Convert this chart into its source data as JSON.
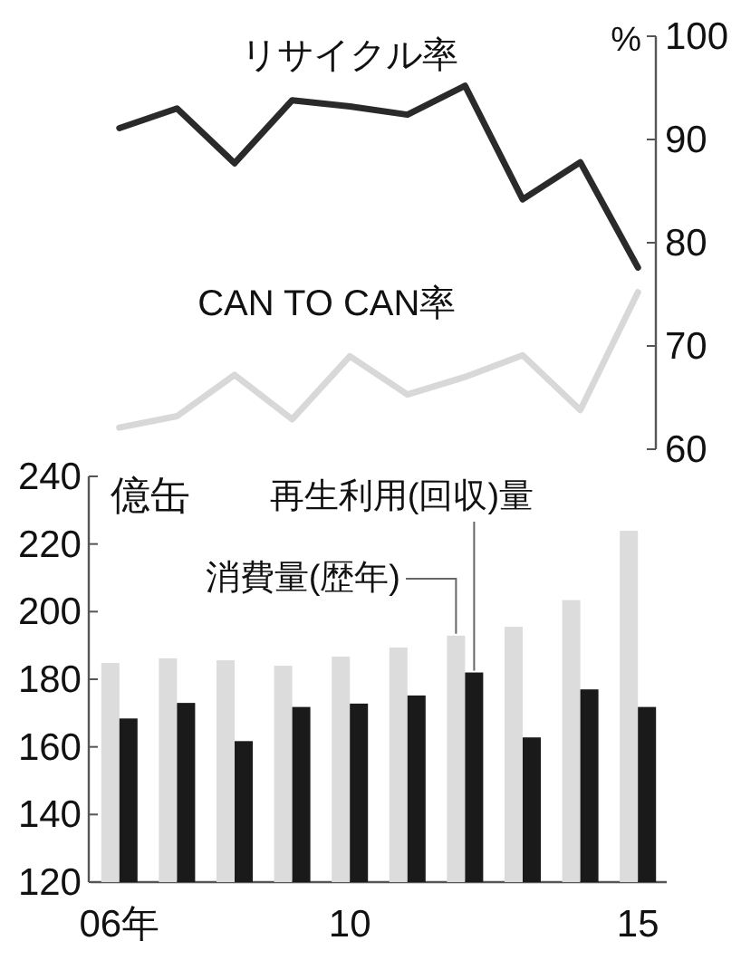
{
  "chart_data": [
    {
      "type": "line",
      "categories": [
        null,
        null,
        null,
        null,
        null,
        null,
        null,
        null,
        null,
        null
      ],
      "ylabel": "%",
      "ylim": [
        60,
        100
      ],
      "yticks": [
        60,
        70,
        80,
        90,
        100
      ],
      "tick_labels": "y",
      "grid": false,
      "marker": "none",
      "line_style": "solid",
      "series": [
        {
          "name": "リサイクル率",
          "color": "#2a2a2a",
          "values": [
            91.1,
            93.0,
            87.7,
            93.8,
            93.2,
            92.4,
            95.2,
            84.2,
            87.8,
            77.6
          ]
        },
        {
          "name": "CAN TO CAN率",
          "color": "#d8d8d8",
          "values": [
            62.1,
            63.2,
            67.2,
            62.9,
            69.0,
            65.3,
            67.0,
            69.1,
            63.8,
            75.2
          ]
        }
      ]
    },
    {
      "type": "bar",
      "categories": [
        "06年",
        null,
        null,
        null,
        "10",
        null,
        null,
        null,
        null,
        "15"
      ],
      "ylabel": "億缶",
      "ylim": [
        120,
        240
      ],
      "yticks": [
        120,
        140,
        160,
        180,
        200,
        220,
        240
      ],
      "grid": false,
      "series": [
        {
          "name": "消費量(歴年)",
          "color": "#dcdcdc",
          "values": [
            184.8,
            186.2,
            185.6,
            184,
            186.7,
            189.4,
            192.9,
            195.5,
            203.4,
            223.9
          ]
        },
        {
          "name": "再生利用(回収)量",
          "color": "#1a1a1a",
          "values": [
            168.4,
            173,
            161.7,
            171.8,
            172.8,
            175.2,
            182,
            162.8,
            177,
            171.8
          ]
        }
      ]
    }
  ]
}
